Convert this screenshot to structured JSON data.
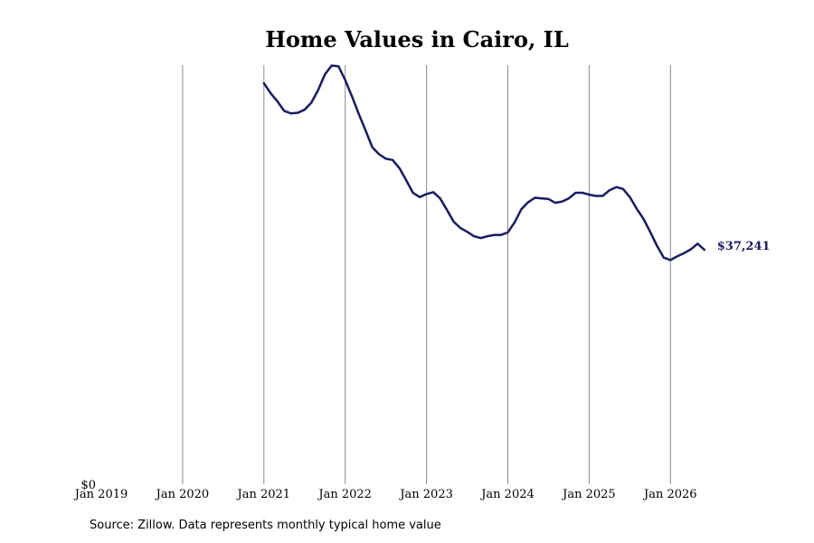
{
  "chart_data": {
    "type": "line",
    "title": "Home Values in Cairo, IL",
    "xlabel": "",
    "ylabel": "",
    "x_tick_labels": [
      "Jan 2019",
      "Jan 2020",
      "Jan 2021",
      "Jan 2022",
      "Jan 2023",
      "Jan 2024",
      "Jan 2025",
      "Jan 2026"
    ],
    "y_tick_labels": [
      "$0"
    ],
    "x_range": [
      "2019-01",
      "2026-12"
    ],
    "y_range": [
      0,
      67000
    ],
    "grid": "vertical",
    "legend": "none",
    "line_color": "#1a1a66",
    "series": [
      {
        "x": [
          "2021-01",
          "2021-02",
          "2021-03",
          "2021-04",
          "2021-05",
          "2021-06",
          "2021-07",
          "2021-08",
          "2021-09",
          "2021-10",
          "2021-11",
          "2021-12",
          "2022-01",
          "2022-02",
          "2022-03",
          "2022-04",
          "2022-05",
          "2022-06",
          "2022-07",
          "2022-08",
          "2022-09",
          "2022-10",
          "2022-11",
          "2022-12",
          "2023-01",
          "2023-02",
          "2023-03",
          "2023-04",
          "2023-05",
          "2023-06",
          "2023-07",
          "2023-08",
          "2023-09",
          "2023-10",
          "2023-11",
          "2023-12",
          "2024-01",
          "2024-02",
          "2024-03",
          "2024-04",
          "2024-05",
          "2024-06",
          "2024-07",
          "2024-08",
          "2024-09",
          "2024-10",
          "2024-11",
          "2024-12",
          "2025-01",
          "2025-02",
          "2025-03",
          "2025-04",
          "2025-05",
          "2025-06",
          "2025-07",
          "2025-08",
          "2025-09",
          "2025-10",
          "2025-11",
          "2025-12",
          "2026-01",
          "2026-02",
          "2026-03",
          "2026-04",
          "2026-05",
          "2026-06"
        ],
        "values": [
          63700,
          62100,
          60800,
          59300,
          58900,
          59000,
          59500,
          60600,
          62600,
          65100,
          66500,
          66400,
          64200,
          61600,
          58800,
          56200,
          53500,
          52400,
          51700,
          51500,
          50200,
          48300,
          46300,
          45600,
          46100,
          46400,
          45400,
          43600,
          41700,
          40700,
          40100,
          39400,
          39100,
          39400,
          39600,
          39600,
          40000,
          41600,
          43700,
          44800,
          45500,
          45400,
          45300,
          44700,
          44900,
          45400,
          46300,
          46300,
          46000,
          45800,
          45800,
          46700,
          47200,
          46900,
          45600,
          43800,
          42200,
          40100,
          37900,
          36000,
          35600,
          36200,
          36700,
          37300,
          38200,
          37241
        ],
        "end_label": "$37,241"
      }
    ]
  },
  "footer": {
    "source": "Source: Zillow. Data represents monthly typical home value"
  }
}
